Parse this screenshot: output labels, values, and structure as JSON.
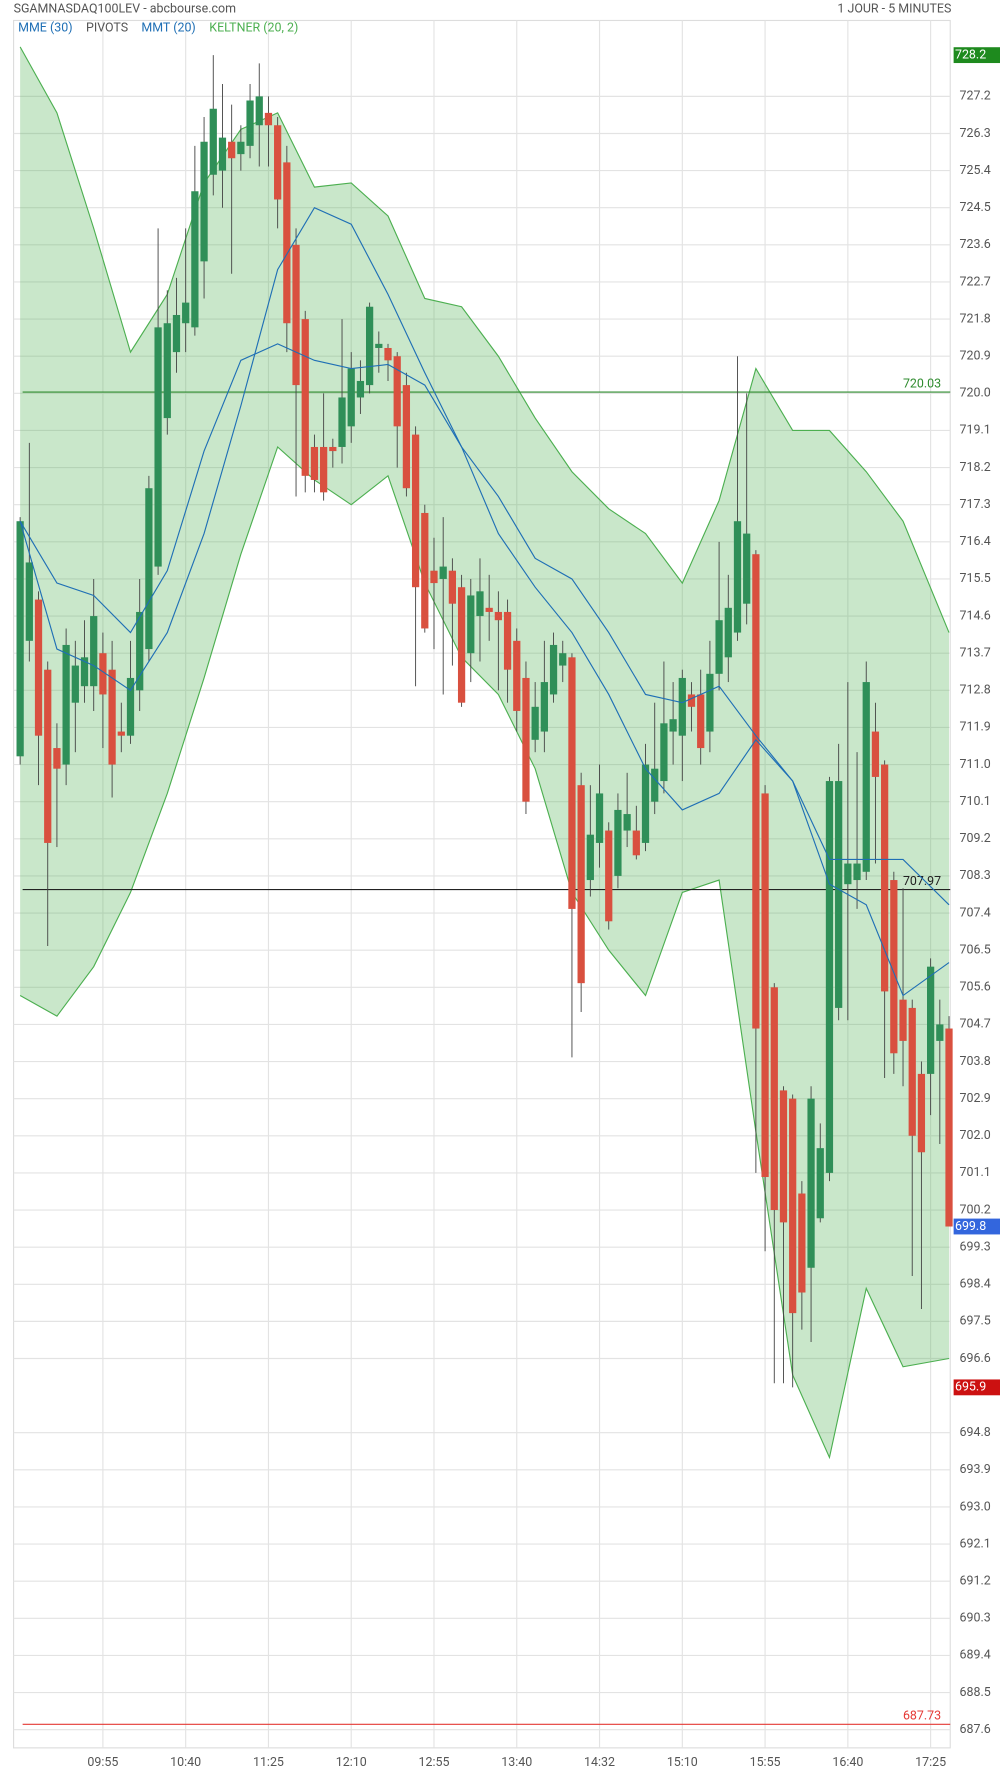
{
  "chart_data": {
    "type": "candlestick",
    "title": "SGAMNASDAQ100LEV - abcbourse.com",
    "subtitle": "1 JOUR - 5 MINUTES",
    "categories": [
      null,
      null,
      null,
      null,
      null,
      null,
      null,
      null,
      null,
      "09:55",
      null,
      null,
      null,
      null,
      null,
      null,
      null,
      null,
      "10:40",
      null,
      null,
      null,
      null,
      null,
      null,
      null,
      null,
      "11:25",
      null,
      null,
      null,
      null,
      null,
      null,
      null,
      null,
      "12:10",
      null,
      null,
      null,
      null,
      null,
      null,
      null,
      null,
      "12:55",
      null,
      null,
      null,
      null,
      null,
      null,
      null,
      null,
      "13:40",
      null,
      null,
      null,
      null,
      null,
      null,
      null,
      null,
      "14:32",
      null,
      null,
      null,
      null,
      null,
      null,
      null,
      null,
      "15:10",
      null,
      null,
      null,
      null,
      null,
      null,
      null,
      null,
      "15:55",
      null,
      null,
      null,
      null,
      null,
      null,
      null,
      null,
      "16:40",
      null,
      null,
      null,
      null,
      null,
      null,
      null,
      null,
      "17:25",
      null,
      null
    ],
    "open": [
      711.2,
      714,
      715,
      713.3,
      711.4,
      711,
      712.5,
      712.9,
      712.9,
      713.7,
      713.3,
      711.8,
      711.7,
      712.8,
      713.8,
      715.8,
      719.4,
      721,
      721.7,
      721.6,
      723.2,
      725.3,
      725.4,
      726.1,
      725.8,
      726.0,
      726.5,
      726.8,
      726.5,
      725.6,
      723.6,
      721.8,
      718.7,
      718.7,
      718.7,
      718.7,
      719.2,
      719.9,
      720.2,
      721.1,
      721.1,
      720.9,
      720.2,
      719.0,
      717.1,
      715.7,
      715.5,
      715.7,
      715.3,
      713.7,
      714.6,
      714.8,
      714.7,
      714.7,
      714.0,
      713.1,
      711.6,
      711.8,
      712.7,
      713.4,
      713.6,
      710.5,
      708.2,
      709.1,
      709.4,
      708.3,
      709.4,
      709.4,
      709.1,
      710.1,
      710.6,
      711.8,
      711.7,
      712.7,
      712.7,
      711.8,
      713.2,
      713.6,
      714.2,
      714.9,
      716.1,
      710.3,
      705.6,
      703.1,
      702.9,
      700.6,
      698.8,
      700.0,
      701.1,
      705.1,
      708.1,
      708.2,
      708.4,
      711.8,
      711.0,
      708.2,
      705.3,
      705.1,
      703.5,
      703.5,
      704.3,
      704.6
    ],
    "high": [
      717,
      718.8,
      715.2,
      713.5,
      712,
      714.3,
      714,
      714.5,
      715.5,
      714.2,
      714.0,
      712.5,
      714,
      715.5,
      718,
      724,
      722.5,
      722.8,
      724,
      726,
      726.7,
      728.2,
      727.5,
      727,
      726.5,
      727.5,
      728.0,
      727.2,
      726.7,
      726,
      724,
      722,
      719,
      720,
      718.9,
      721.8,
      721,
      720.8,
      722.2,
      721.5,
      721.2,
      721,
      720.5,
      719.2,
      717.3,
      716.5,
      717,
      716,
      715.6,
      715.5,
      716,
      715.6,
      715.2,
      715,
      714.3,
      713.5,
      713,
      714,
      714.2,
      714,
      713.7,
      710.8,
      710.5,
      711,
      709.6,
      710.3,
      710.8,
      710,
      711.5,
      712.5,
      713.5,
      713,
      713.3,
      713,
      713.3,
      714,
      716.4,
      715.6,
      720.9,
      720,
      716.2,
      710.5,
      705.7,
      703.2,
      703,
      700.9,
      703.2,
      702.3,
      710.7,
      711.5,
      713,
      711.3,
      713.5,
      712.5,
      711.1,
      708.4,
      708,
      705.3,
      703.8,
      706.3,
      705.3,
      704.9
    ],
    "low": [
      711,
      713.5,
      710.5,
      706.6,
      709,
      710.5,
      711.3,
      712.5,
      712.3,
      711.4,
      710.2,
      711.3,
      711.5,
      712.3,
      713.5,
      715.6,
      719,
      720.5,
      721,
      721.4,
      722.3,
      724.8,
      724.5,
      722.9,
      725.4,
      725.7,
      725.5,
      725.5,
      724.0,
      721.0,
      717.5,
      717.6,
      717.6,
      717.4,
      718.2,
      718.3,
      718.8,
      719.5,
      720,
      720.5,
      720.3,
      718.2,
      717.5,
      712.9,
      714.2,
      713.8,
      712.7,
      713.4,
      712.4,
      713,
      713.5,
      714,
      712.8,
      712.5,
      711.8,
      709.8,
      711.3,
      711.3,
      712.5,
      713,
      703.9,
      705.0,
      707.8,
      708.5,
      707,
      708,
      709,
      708.7,
      708.9,
      709.8,
      710.3,
      711,
      710.6,
      711.8,
      711,
      711.3,
      712.8,
      713,
      714,
      714.4,
      701.1,
      699.2,
      696.0,
      696.0,
      695.9,
      697.3,
      697,
      699.9,
      700.9,
      704.8,
      704.8,
      707.5,
      708.2,
      708.6,
      703.4,
      703.5,
      703.2,
      698.6,
      697.8,
      702.5,
      701.8,
      699.8
    ],
    "close": [
      716.9,
      715.9,
      711.7,
      709.1,
      710.9,
      713.9,
      713.4,
      713.6,
      714.6,
      712.7,
      711.0,
      711.7,
      713.1,
      714.7,
      717.7,
      721.6,
      721.7,
      721.9,
      722.2,
      724.9,
      726.1,
      726.9,
      726.2,
      725.7,
      726.1,
      727.1,
      727.2,
      726.5,
      724.7,
      721.7,
      720.2,
      718.0,
      717.9,
      717.6,
      718.6,
      719.9,
      720.6,
      720.3,
      722.1,
      721.2,
      720.8,
      719.2,
      717.7,
      715.3,
      714.3,
      715.4,
      715.8,
      714.9,
      712.5,
      715.1,
      715.2,
      714.7,
      714.5,
      713.3,
      712.3,
      710.1,
      712.4,
      713.0,
      713.9,
      713.7,
      707.5,
      705.7,
      709.3,
      710.3,
      707.2,
      709.9,
      709.8,
      708.8,
      711.0,
      710.9,
      712.0,
      712.1,
      713.1,
      712.4,
      711.4,
      713.2,
      714.5,
      714.8,
      716.9,
      716.6,
      704.6,
      701.0,
      700.2,
      699.9,
      697.7,
      698.2,
      702.9,
      701.7,
      710.6,
      710.6,
      708.6,
      708.6,
      713.0,
      710.7,
      705.5,
      704.0,
      704.3,
      702.0,
      701.6,
      706.1,
      704.7,
      699.8
    ],
    "up_color": "#2f8f58",
    "down_color": "#d9503f",
    "indicators": {
      "x": [
        0,
        4,
        8,
        12,
        16,
        20,
        24,
        28,
        32,
        36,
        40,
        44,
        48,
        52,
        56,
        60,
        64,
        68,
        72,
        76,
        80,
        84,
        88,
        92,
        96,
        101
      ],
      "series": [
        {
          "name": "MME (30)",
          "color": "#1f6fb5",
          "values": [
            716.9,
            713.8,
            713.4,
            712.8,
            714.2,
            716.6,
            719.7,
            723.0,
            724.5,
            724.1,
            722.4,
            720.5,
            718.7,
            716.6,
            715.3,
            714.2,
            712.7,
            710.9,
            709.9,
            710.3,
            711.6,
            710.6,
            708.1,
            707.6,
            705.4,
            706.2
          ]
        },
        {
          "name": "MMT (20)",
          "color": "#1f6fb5",
          "values": [
            716.9,
            715.4,
            715.1,
            714.2,
            715.7,
            718.6,
            720.8,
            721.2,
            720.8,
            720.6,
            720.7,
            720.2,
            718.7,
            717.5,
            716.0,
            715.5,
            714.2,
            712.7,
            712.5,
            712.9,
            711.7,
            710.6,
            708.7,
            708.7,
            708.7,
            707.6
          ]
        }
      ],
      "keltner": {
        "name": "KELTNER (20, 2)",
        "color": "#4caf50",
        "upper": [
          728.4,
          726.8,
          724.0,
          721.0,
          722.4,
          725.1,
          726.4,
          726.8,
          725.0,
          725.1,
          724.3,
          722.3,
          722.1,
          720.9,
          719.4,
          718.1,
          717.2,
          716.6,
          715.4,
          717.4,
          720.6,
          719.1,
          719.1,
          718.1,
          716.9,
          714.2
        ],
        "lower": [
          705.4,
          704.9,
          706.1,
          707.9,
          710.3,
          713.1,
          716.1,
          718.7,
          717.9,
          717.3,
          718.0,
          715.4,
          713.6,
          712.7,
          710.9,
          707.9,
          706.5,
          705.4,
          707.9,
          708.2,
          702.1,
          696.2,
          694.2,
          698.3,
          696.4,
          696.6
        ]
      }
    },
    "pivots": {
      "name": "PIVOTS",
      "lines": [
        {
          "value": 720.03,
          "color": "#2e8b2e"
        },
        {
          "value": 707.97,
          "color": "#222222"
        },
        {
          "value": 687.73,
          "color": "#e53935"
        }
      ]
    },
    "price_markers": [
      {
        "value": 728.2,
        "color": "#1e8a1e"
      },
      {
        "value": 699.8,
        "color": "#3366dd"
      },
      {
        "value": 695.9,
        "color": "#cc1111"
      }
    ],
    "ylim": [
      687.16,
      729.04
    ],
    "yticks": [
      727.2,
      726.3,
      725.4,
      724.5,
      723.6,
      722.7,
      721.8,
      720.9,
      {
        "value": 720,
        "label": "720.0"
      },
      719.1,
      718.2,
      717.3,
      716.4,
      715.5,
      714.6,
      713.7,
      712.8,
      711.9,
      {
        "value": 711,
        "label": "711.0"
      },
      710.1,
      709.2,
      708.3,
      707.4,
      706.5,
      705.6,
      704.7,
      703.8,
      702.9,
      {
        "value": 702,
        "label": "702.0"
      },
      701.1,
      700.2,
      699.3,
      698.4,
      697.5,
      696.6,
      694.8,
      693.9,
      {
        "value": 693,
        "label": "693.0"
      },
      692.1,
      691.2,
      690.3,
      689.4,
      688.5,
      687.6
    ],
    "grid": true
  }
}
